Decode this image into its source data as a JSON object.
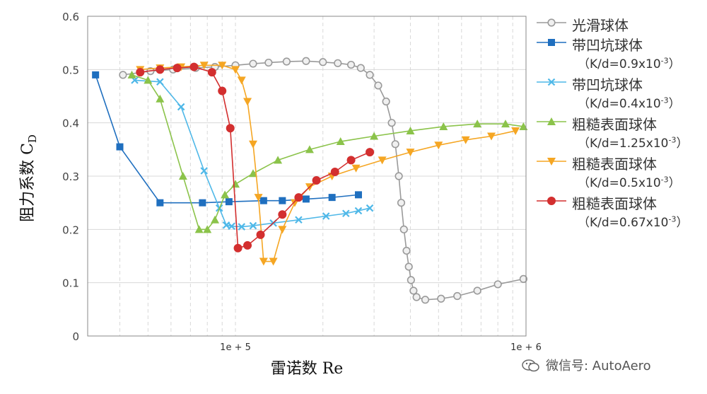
{
  "chart_data": {
    "type": "line",
    "title": "",
    "xlabel": "雷诺数 Re",
    "ylabel": "阻力系数 C",
    "ylabel_sub": "D",
    "x_scale": "log",
    "xlim": [
      31000,
      1000000
    ],
    "ylim": [
      0,
      0.6
    ],
    "yticks": [
      "0",
      "0.1",
      "0.2",
      "0.3",
      "0.4",
      "0.5",
      "0.6"
    ],
    "xtick_labels": [
      {
        "value": 100000,
        "label": "1e + 5"
      },
      {
        "value": 1000000,
        "label": "1e + 6"
      }
    ],
    "grid": true,
    "legend_position": "right",
    "series": [
      {
        "name": "光滑球体",
        "sub": "",
        "color": "#9a9a9a",
        "marker": "circle-open",
        "points": [
          [
            41000,
            0.49
          ],
          [
            51000,
            0.497
          ],
          [
            61000,
            0.5
          ],
          [
            73000,
            0.503
          ],
          [
            85000,
            0.505
          ],
          [
            100000,
            0.508
          ],
          [
            115000,
            0.511
          ],
          [
            130000,
            0.513
          ],
          [
            150000,
            0.515
          ],
          [
            175000,
            0.516
          ],
          [
            200000,
            0.514
          ],
          [
            225000,
            0.512
          ],
          [
            250000,
            0.509
          ],
          [
            270000,
            0.503
          ],
          [
            290000,
            0.49
          ],
          [
            310000,
            0.47
          ],
          [
            330000,
            0.44
          ],
          [
            345000,
            0.4
          ],
          [
            355000,
            0.36
          ],
          [
            365000,
            0.3
          ],
          [
            372000,
            0.25
          ],
          [
            380000,
            0.2
          ],
          [
            388000,
            0.16
          ],
          [
            395000,
            0.13
          ],
          [
            402000,
            0.105
          ],
          [
            410000,
            0.085
          ],
          [
            420000,
            0.073
          ],
          [
            450000,
            0.068
          ],
          [
            510000,
            0.07
          ],
          [
            580000,
            0.075
          ],
          [
            680000,
            0.085
          ],
          [
            800000,
            0.097
          ],
          [
            980000,
            0.107
          ]
        ]
      },
      {
        "name": "带凹坑球体",
        "sub": "（K/d=0.9x10",
        "sub_exp": "-3",
        "sub_end": "）",
        "color": "#1f6fbf",
        "marker": "square",
        "points": [
          [
            33000,
            0.49
          ],
          [
            40000,
            0.355
          ],
          [
            55000,
            0.25
          ],
          [
            77000,
            0.25
          ],
          [
            95000,
            0.252
          ],
          [
            125000,
            0.254
          ],
          [
            145000,
            0.254
          ],
          [
            175000,
            0.257
          ],
          [
            215000,
            0.26
          ],
          [
            265000,
            0.265
          ]
        ]
      },
      {
        "name": "带凹坑球体",
        "sub": "（K/d=0.4x10",
        "sub_exp": "-3",
        "sub_end": "）",
        "color": "#4fb8e8",
        "marker": "x",
        "points": [
          [
            45000,
            0.48
          ],
          [
            55000,
            0.477
          ],
          [
            65000,
            0.43
          ],
          [
            78000,
            0.31
          ],
          [
            88000,
            0.24
          ],
          [
            93000,
            0.208
          ],
          [
            97000,
            0.206
          ],
          [
            105000,
            0.205
          ],
          [
            115000,
            0.207
          ],
          [
            135000,
            0.212
          ],
          [
            165000,
            0.218
          ],
          [
            205000,
            0.225
          ],
          [
            240000,
            0.23
          ],
          [
            265000,
            0.235
          ],
          [
            290000,
            0.24
          ]
        ]
      },
      {
        "name": "粗糙表面球体",
        "sub": "（K/d=1.25x10",
        "sub_exp": "-3",
        "sub_end": "）",
        "color": "#8bc34a",
        "marker": "triangle",
        "points": [
          [
            44000,
            0.49
          ],
          [
            50000,
            0.48
          ],
          [
            55000,
            0.445
          ],
          [
            66000,
            0.3
          ],
          [
            75000,
            0.2
          ],
          [
            80000,
            0.2
          ],
          [
            85000,
            0.218
          ],
          [
            92000,
            0.265
          ],
          [
            100000,
            0.285
          ],
          [
            115000,
            0.305
          ],
          [
            140000,
            0.33
          ],
          [
            180000,
            0.35
          ],
          [
            230000,
            0.365
          ],
          [
            300000,
            0.375
          ],
          [
            400000,
            0.385
          ],
          [
            520000,
            0.393
          ],
          [
            680000,
            0.398
          ],
          [
            850000,
            0.398
          ],
          [
            980000,
            0.393
          ]
        ]
      },
      {
        "name": "粗糙表面球体",
        "sub": "（K/d=0.5x10",
        "sub_exp": "-3",
        "sub_end": "）",
        "color": "#f5a623",
        "marker": "triangle-down",
        "points": [
          [
            47000,
            0.5
          ],
          [
            55000,
            0.503
          ],
          [
            65000,
            0.505
          ],
          [
            78000,
            0.508
          ],
          [
            90000,
            0.508
          ],
          [
            100000,
            0.5
          ],
          [
            105000,
            0.48
          ],
          [
            110000,
            0.44
          ],
          [
            115000,
            0.36
          ],
          [
            120000,
            0.26
          ],
          [
            125000,
            0.14
          ],
          [
            135000,
            0.14
          ],
          [
            145000,
            0.2
          ],
          [
            160000,
            0.25
          ],
          [
            180000,
            0.28
          ],
          [
            215000,
            0.3
          ],
          [
            260000,
            0.315
          ],
          [
            320000,
            0.33
          ],
          [
            400000,
            0.345
          ],
          [
            500000,
            0.358
          ],
          [
            620000,
            0.368
          ],
          [
            760000,
            0.375
          ],
          [
            920000,
            0.385
          ]
        ]
      },
      {
        "name": "粗糙表面球体",
        "sub": "（K/d=0.67x10",
        "sub_exp": "-3",
        "sub_end": "）",
        "color": "#d32f2f",
        "marker": "circle",
        "points": [
          [
            47000,
            0.495
          ],
          [
            55000,
            0.5
          ],
          [
            63000,
            0.503
          ],
          [
            72000,
            0.505
          ],
          [
            83000,
            0.495
          ],
          [
            90000,
            0.46
          ],
          [
            96000,
            0.39
          ],
          [
            102000,
            0.165
          ],
          [
            110000,
            0.17
          ],
          [
            122000,
            0.19
          ],
          [
            145000,
            0.228
          ],
          [
            165000,
            0.26
          ],
          [
            190000,
            0.292
          ],
          [
            220000,
            0.308
          ],
          [
            250000,
            0.33
          ],
          [
            290000,
            0.345
          ]
        ]
      }
    ]
  },
  "watermark": "微信号: AutoAero"
}
